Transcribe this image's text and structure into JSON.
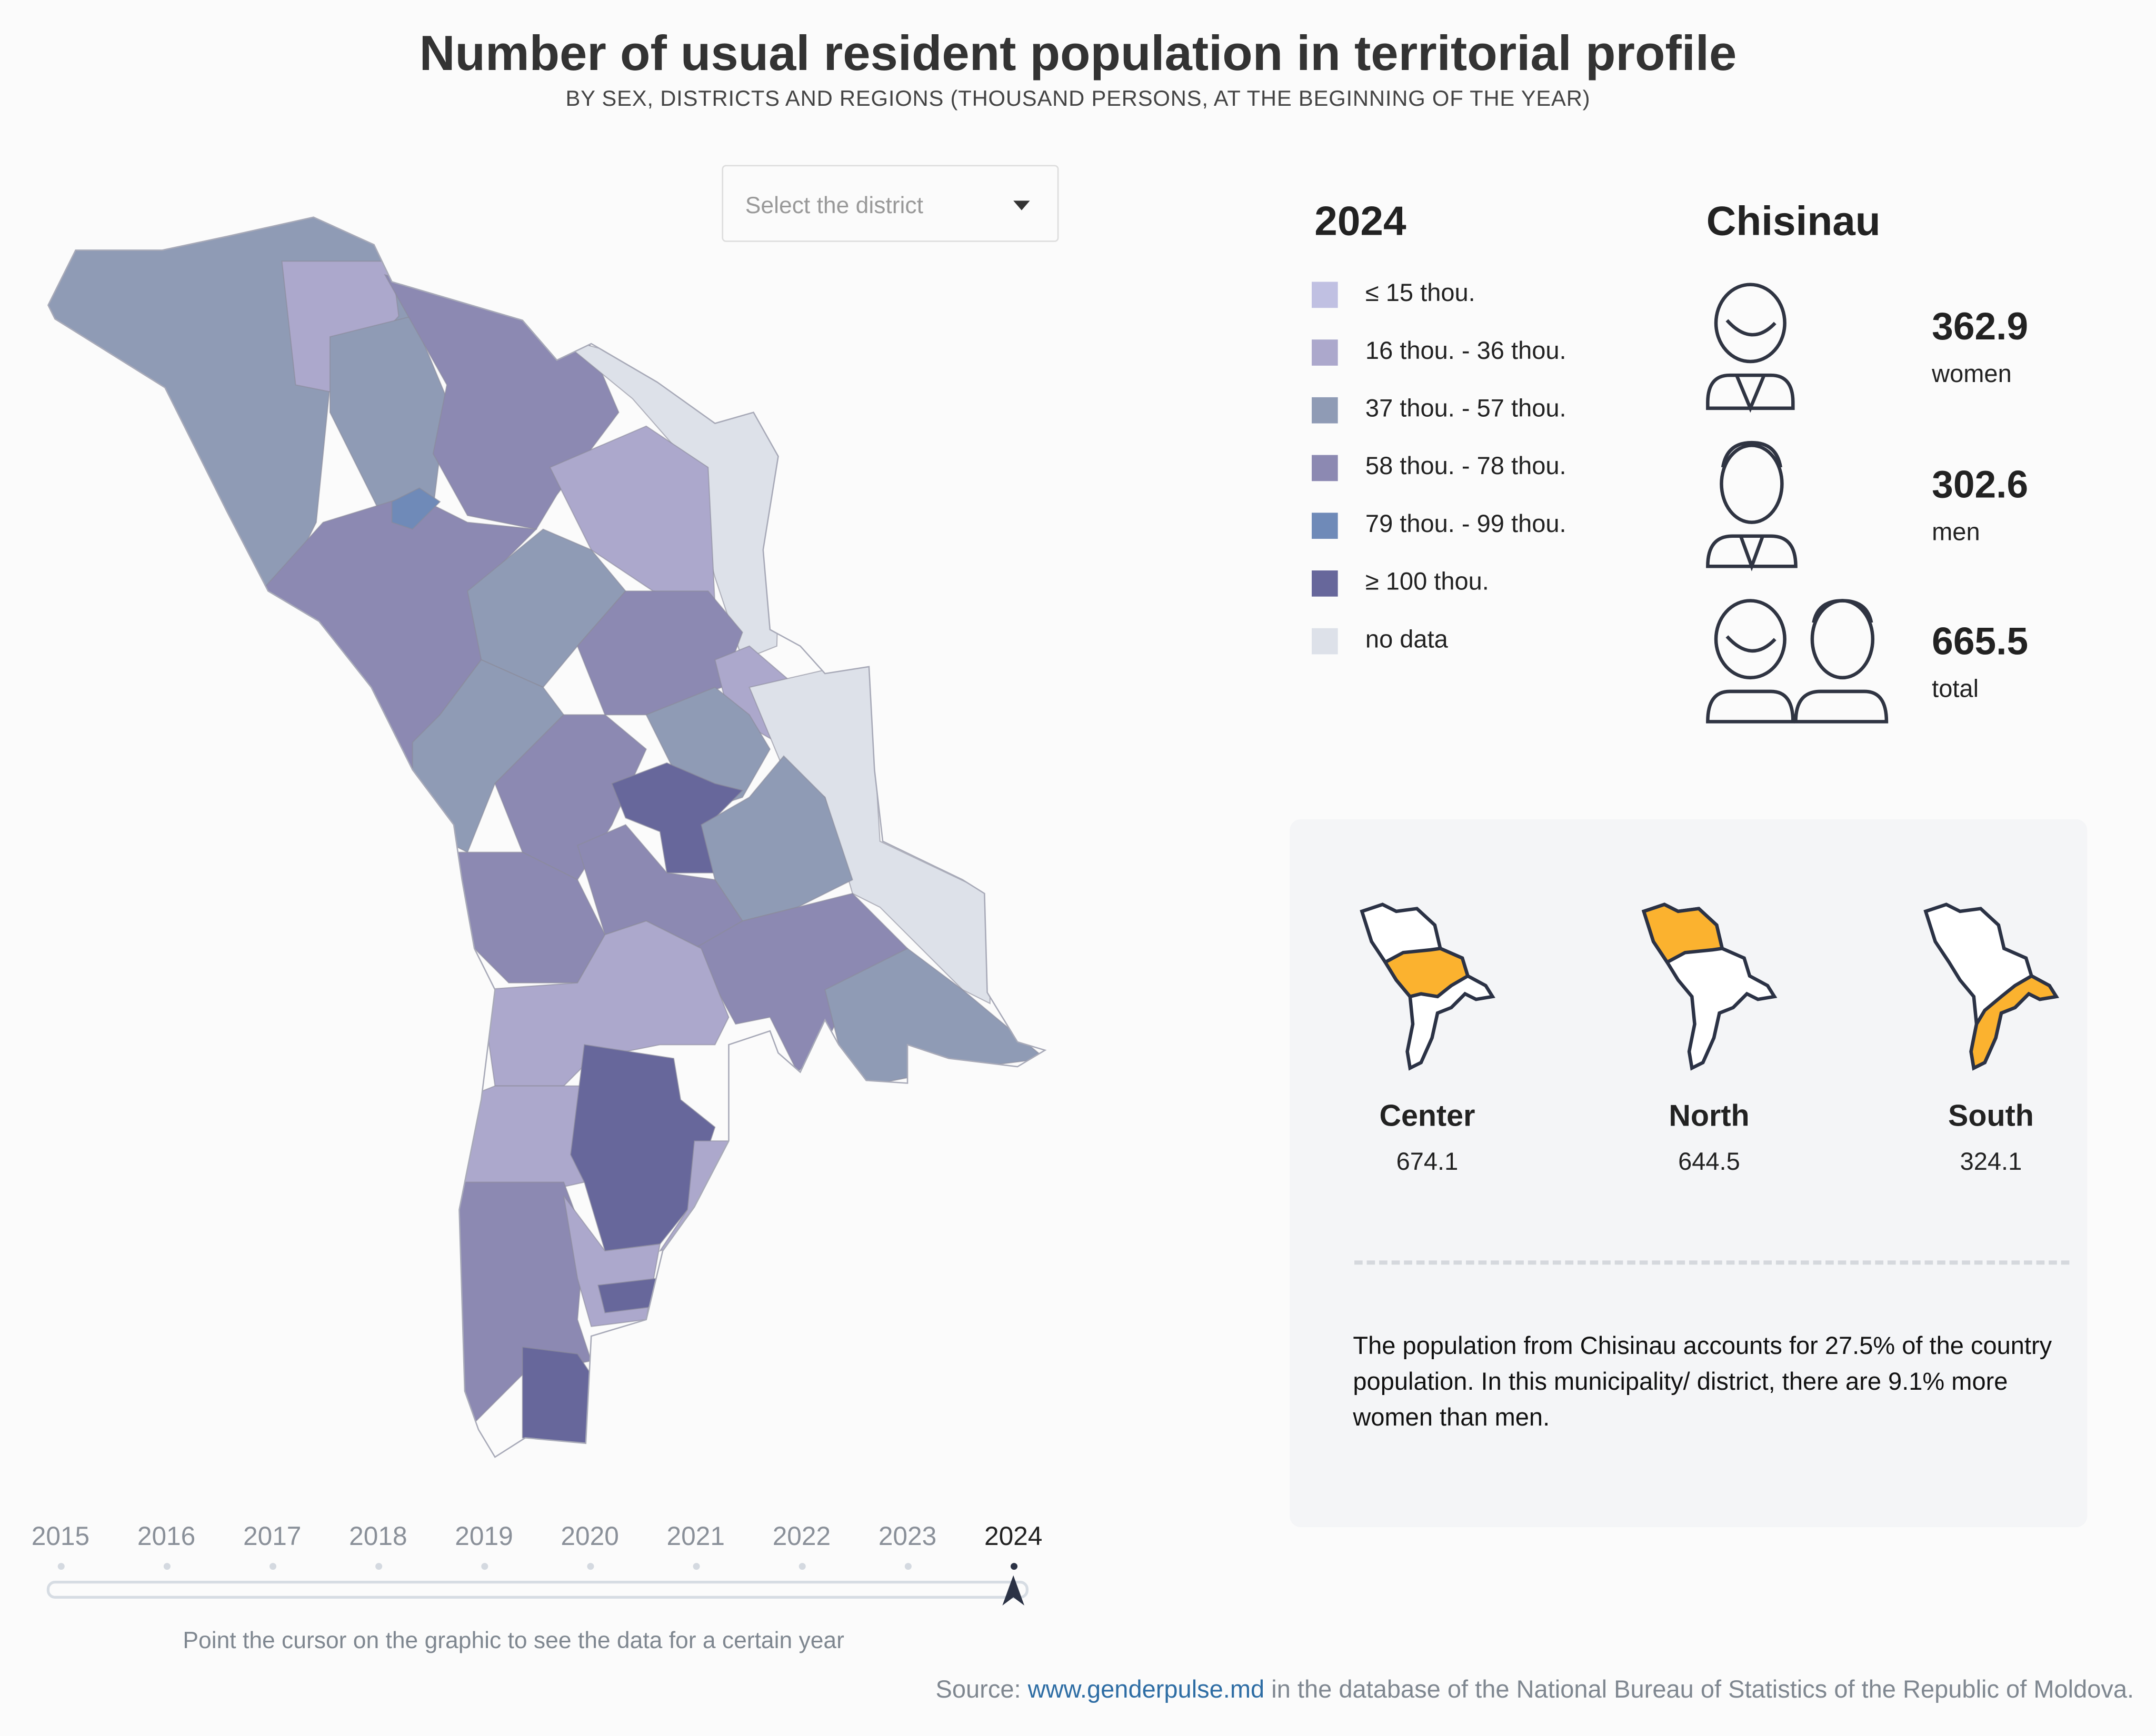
{
  "header": {
    "title": "Number of usual resident population in territorial profile",
    "subtitle": "BY SEX, DISTRICTS AND REGIONS (THOUSAND PERSONS, AT THE BEGINNING OF THE YEAR)"
  },
  "district_select": {
    "placeholder": "Select the district"
  },
  "legend": {
    "year": "2024",
    "items": [
      {
        "label": "≤ 15 thou.",
        "color": "#c0c0e2"
      },
      {
        "label": "16 thou. - 36 thou.",
        "color": "#aca8cc"
      },
      {
        "label": "37 thou. - 57 thou.",
        "color": "#8f9bb5"
      },
      {
        "label": "58 thou. - 78 thou.",
        "color": "#8c89b2"
      },
      {
        "label": "79 thou. - 99 thou.",
        "color": "#6f8ab8"
      },
      {
        "label": "≥ 100 thou.",
        "color": "#67679b"
      },
      {
        "label": "no data",
        "color": "#dde1e9"
      }
    ]
  },
  "district": {
    "name": "Chisinau",
    "women": "362.9",
    "women_label": "women",
    "men": "302.6",
    "men_label": "men",
    "total": "665.5",
    "total_label": "total",
    "icons": [
      "woman-icon",
      "man-icon",
      "couple-icon"
    ]
  },
  "regions": [
    {
      "name": "Center",
      "value": "674.1"
    },
    {
      "name": "North",
      "value": "644.5"
    },
    {
      "name": "South",
      "value": "324.1"
    }
  ],
  "highlight_color": "#fbb22f",
  "note": "The population from Chisinau accounts for 27.5% of the country population. In this municipality/ district, there are 9.1% more women than men.",
  "timeline": {
    "years": [
      "2015",
      "2016",
      "2017",
      "2018",
      "2019",
      "2020",
      "2021",
      "2022",
      "2023",
      "2024"
    ],
    "selected": "2024",
    "hint": "Point the cursor on the graphic to see the data for a certain year"
  },
  "source": {
    "prefix": "Source: ",
    "link": "www.genderpulse.md",
    "suffix": " in the database of the National Bureau of Statistics of the Republic of Moldova."
  }
}
